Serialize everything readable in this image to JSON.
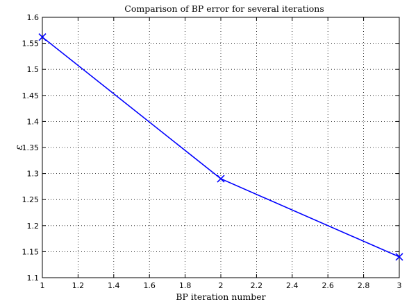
{
  "chart_data": {
    "type": "line",
    "title": "Comparison of BP error for several iterations",
    "xlabel": "BP iteration number",
    "ylabel": "ε",
    "xlim": [
      1,
      3
    ],
    "ylim": [
      1.1,
      1.6
    ],
    "xticks": [
      "1",
      "1.2",
      "1.4",
      "1.6",
      "1.8",
      "2",
      "2.2",
      "2.4",
      "2.6",
      "2.8",
      "3"
    ],
    "yticks": [
      "1.1",
      "1.15",
      "1.2",
      "1.25",
      "1.3",
      "1.35",
      "1.4",
      "1.45",
      "1.5",
      "1.55",
      "1.6"
    ],
    "grid": true,
    "series": [
      {
        "x": [
          1,
          2,
          3
        ],
        "values": [
          1.562,
          1.29,
          1.14
        ],
        "color": "#0000ff",
        "marker": "x"
      }
    ]
  }
}
